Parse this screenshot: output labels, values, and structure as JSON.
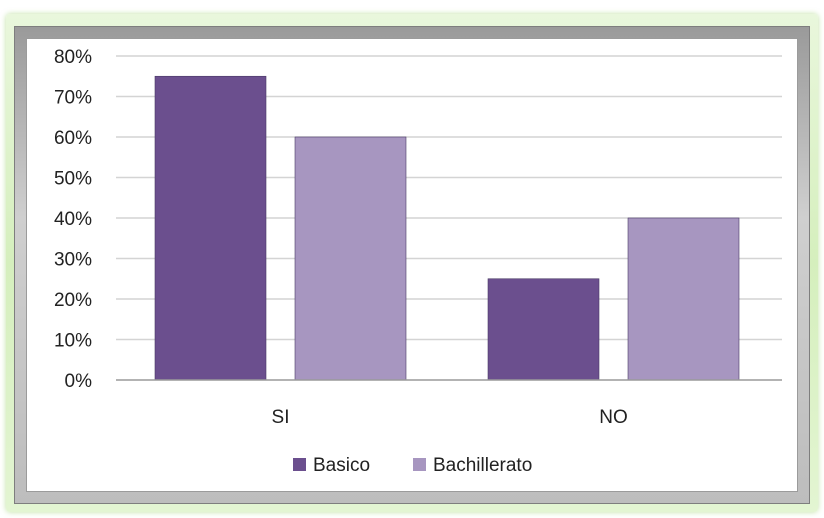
{
  "chart_data": {
    "type": "bar",
    "categories": [
      "SI",
      "NO"
    ],
    "series": [
      {
        "name": "Basico",
        "values": [
          75,
          25
        ],
        "color": "#6b4f8e"
      },
      {
        "name": "Bachillerato",
        "values": [
          60,
          40
        ],
        "color": "#a796c0"
      }
    ],
    "ylim": [
      0,
      80
    ],
    "yticks": [
      "0%",
      "10%",
      "20%",
      "30%",
      "40%",
      "50%",
      "60%",
      "70%",
      "80%"
    ],
    "y_unit": "%",
    "grid": true,
    "legend_position": "bottom",
    "title": "",
    "xlabel": "",
    "ylabel": ""
  },
  "colors": {
    "frame_glow": "#d5efbd",
    "gridline": "#d4d4d4",
    "axis": "#9a9a9a"
  }
}
